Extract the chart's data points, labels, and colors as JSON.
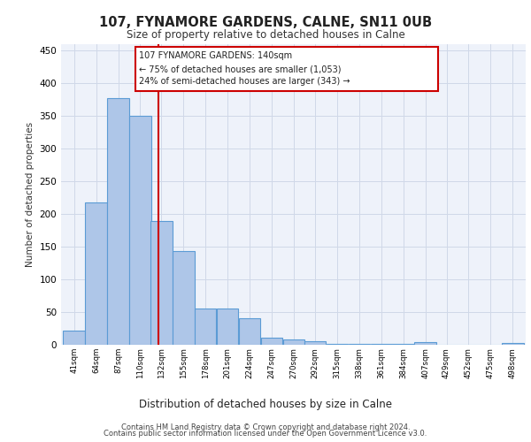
{
  "title1": "107, FYNAMORE GARDENS, CALNE, SN11 0UB",
  "title2": "Size of property relative to detached houses in Calne",
  "xlabel": "Distribution of detached houses by size in Calne",
  "ylabel": "Number of detached properties",
  "bar_left_edges": [
    41,
    64,
    87,
    110,
    132,
    155,
    178,
    201,
    224,
    247,
    270,
    292,
    315,
    338,
    361,
    384,
    407,
    429,
    452,
    475,
    498
  ],
  "bar_heights": [
    22,
    218,
    378,
    350,
    190,
    143,
    55,
    55,
    40,
    11,
    8,
    5,
    2,
    2,
    1,
    1,
    4,
    0,
    0,
    0,
    3
  ],
  "bin_width": 23,
  "bar_color": "#aec6e8",
  "bar_edge_color": "#5b9bd5",
  "ylim": [
    0,
    460
  ],
  "yticks": [
    0,
    50,
    100,
    150,
    200,
    250,
    300,
    350,
    400,
    450
  ],
  "grid_color": "#d0d8e8",
  "bg_color": "#eef2fa",
  "vline_x": 140,
  "vline_color": "#cc0000",
  "annotation_text_line1": "107 FYNAMORE GARDENS: 140sqm",
  "annotation_text_line2": "← 75% of detached houses are smaller (1,053)",
  "annotation_text_line3": "24% of semi-detached houses are larger (343) →",
  "annotation_box_color": "#cc0000",
  "footer1": "Contains HM Land Registry data © Crown copyright and database right 2024.",
  "footer2": "Contains public sector information licensed under the Open Government Licence v3.0.",
  "tick_labels": [
    "41sqm",
    "64sqm",
    "87sqm",
    "110sqm",
    "132sqm",
    "155sqm",
    "178sqm",
    "201sqm",
    "224sqm",
    "247sqm",
    "270sqm",
    "292sqm",
    "315sqm",
    "338sqm",
    "361sqm",
    "384sqm",
    "407sqm",
    "429sqm",
    "452sqm",
    "475sqm",
    "498sqm"
  ]
}
